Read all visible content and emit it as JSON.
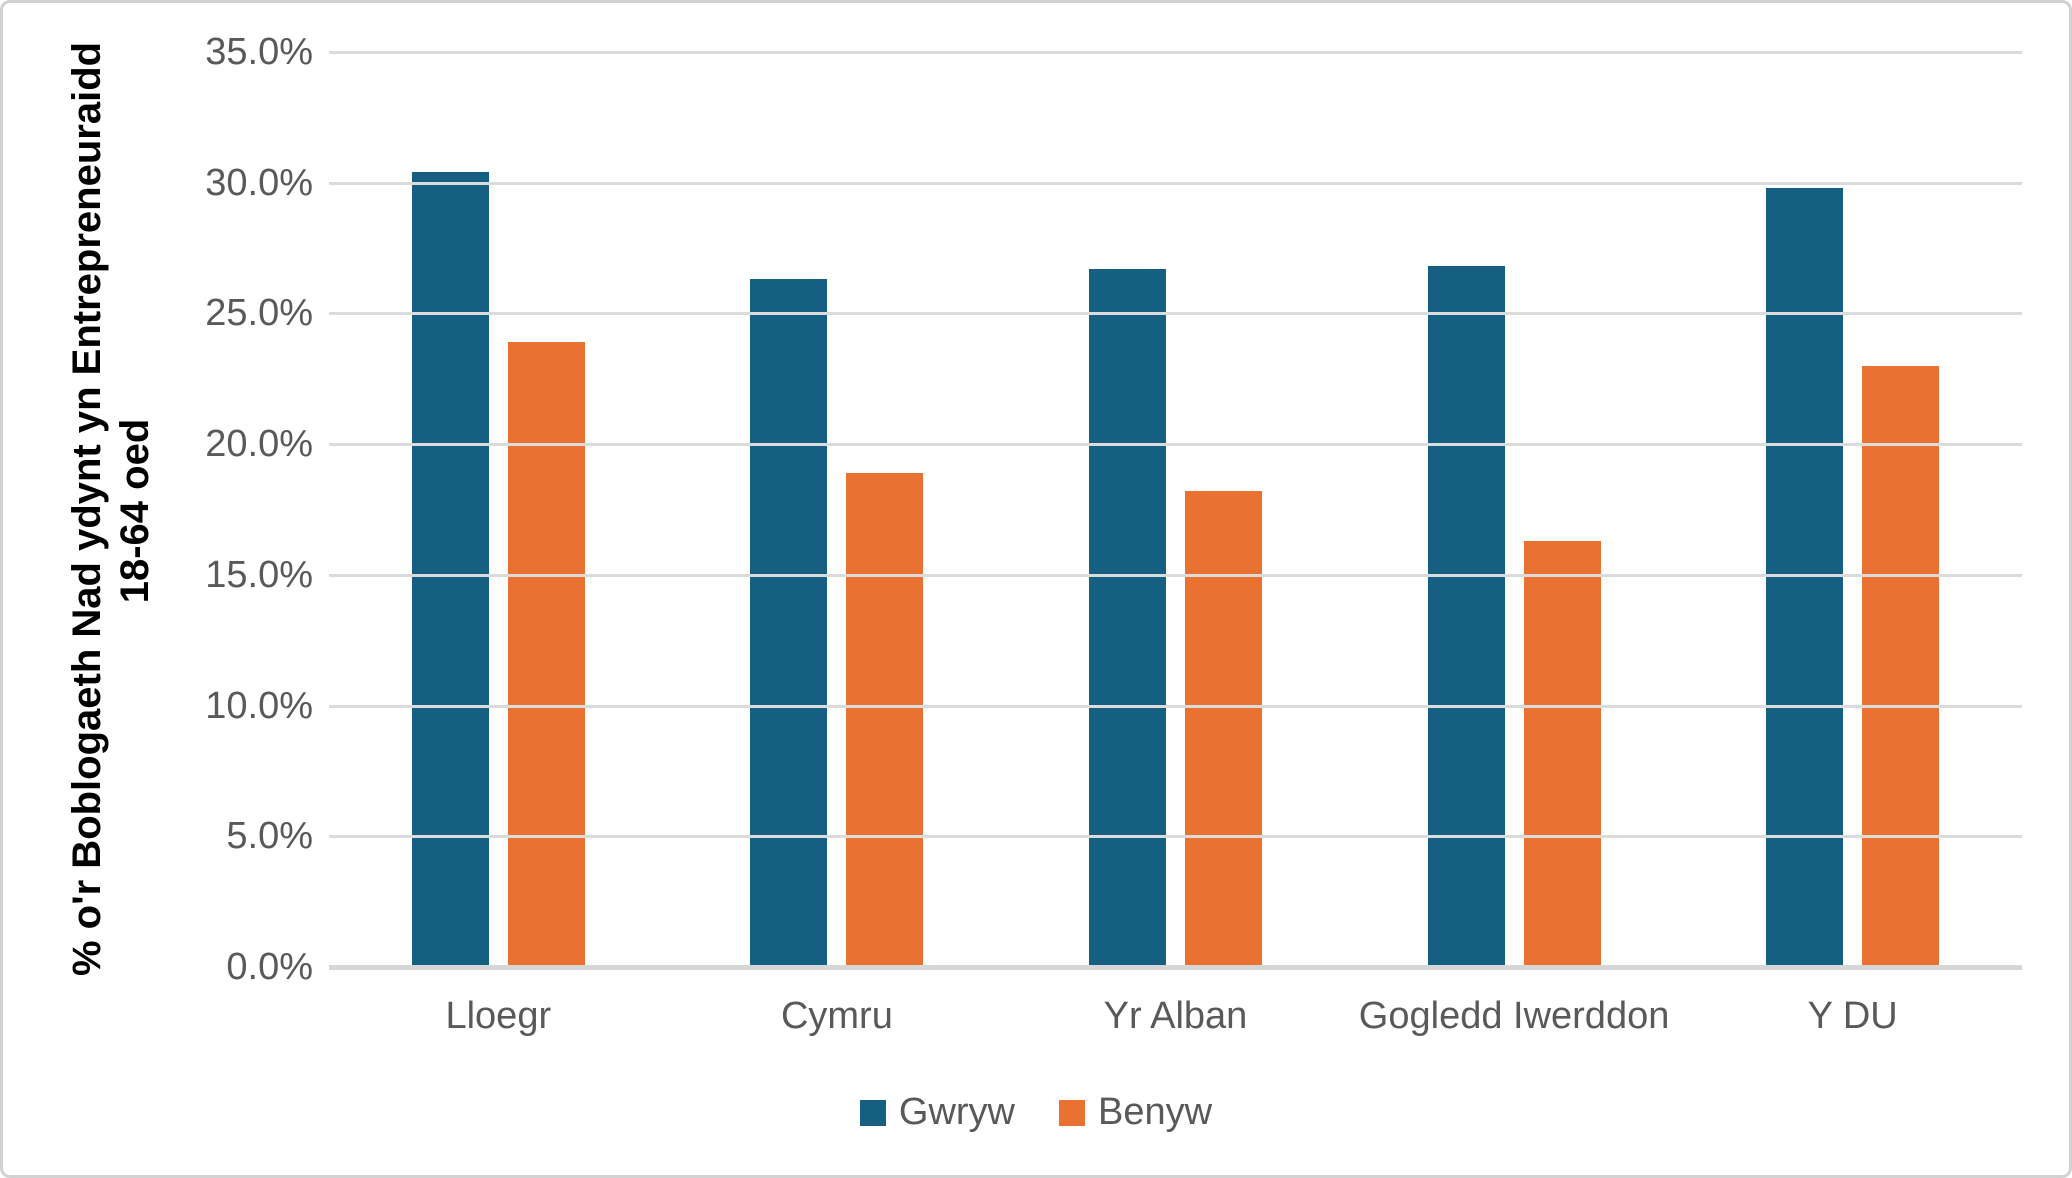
{
  "chart_data": {
    "type": "bar",
    "title": "",
    "ylabel_line1": "% o'r Boblogaeth Nad ydynt yn Entrepreneuraidd",
    "ylabel_line2": "18-64 oed",
    "categories": [
      "Lloegr",
      "Cymru",
      "Yr Alban",
      "Gogledd Iwerddon",
      "Y DU"
    ],
    "series": [
      {
        "name": "Gwryw",
        "color": "#156082",
        "values": [
          30.4,
          26.3,
          26.7,
          26.8,
          29.8
        ]
      },
      {
        "name": "Benyw",
        "color": "#E97132",
        "values": [
          23.9,
          18.9,
          18.2,
          16.3,
          23.0
        ]
      }
    ],
    "y_axis": {
      "min": 0,
      "max": 35,
      "step": 5,
      "tick_labels": [
        "0.0%",
        "5.0%",
        "10.0%",
        "15.0%",
        "20.0%",
        "25.0%",
        "30.0%",
        "35.0%"
      ]
    },
    "grid": true,
    "legend_position": "bottom"
  },
  "colors": {
    "gridline": "#DBDBDB",
    "axis_line": "#D6D6D6",
    "tick_text": "#595959",
    "title_text": "#000000",
    "border": "#D2D2D2",
    "background": "#FFFFFF"
  }
}
